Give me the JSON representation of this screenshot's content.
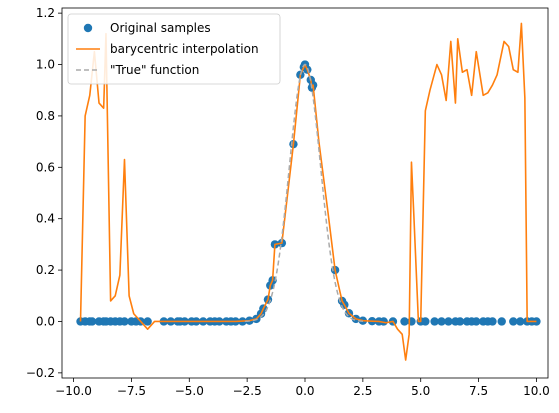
{
  "chart_data": {
    "type": "line",
    "title": "",
    "xlabel": "",
    "ylabel": "",
    "xlim": [
      -10.5,
      10.5
    ],
    "ylim": [
      -0.22,
      1.22
    ],
    "xticks": [
      -10.0,
      -7.5,
      -5.0,
      -2.5,
      0.0,
      2.5,
      5.0,
      7.5,
      10.0
    ],
    "xtick_labels": [
      "−10.0",
      "−7.5",
      "−5.0",
      "−2.5",
      "0.0",
      "2.5",
      "5.0",
      "7.5",
      "10.0"
    ],
    "yticks": [
      -0.2,
      0.0,
      0.2,
      0.4,
      0.6,
      0.8,
      1.0,
      1.2
    ],
    "ytick_labels": [
      "−0.2",
      "0.0",
      "0.2",
      "0.4",
      "0.6",
      "0.8",
      "1.0",
      "1.2"
    ],
    "grid": false,
    "legend_position": "top-left",
    "series": [
      {
        "name": "Original samples",
        "kind": "scatter",
        "color": "#1f77b4",
        "x": [
          -9.7,
          -9.5,
          -9.3,
          -9.2,
          -8.9,
          -8.7,
          -8.6,
          -8.4,
          -8.2,
          -8.0,
          -7.8,
          -7.5,
          -7.3,
          -7.1,
          -6.8,
          -6.1,
          -5.8,
          -5.5,
          -5.4,
          -5.2,
          -4.9,
          -4.7,
          -4.4,
          -4.1,
          -3.9,
          -3.7,
          -3.4,
          -3.2,
          -3.0,
          -2.7,
          -2.4,
          -2.1,
          -1.9,
          -1.8,
          -1.6,
          -1.5,
          -1.4,
          -1.3,
          -1.0,
          -0.5,
          -0.2,
          -0.05,
          0.0,
          0.1,
          0.25,
          0.3,
          0.35,
          1.3,
          1.6,
          1.7,
          1.9,
          2.2,
          2.5,
          2.9,
          3.2,
          3.4,
          3.8,
          4.3,
          4.6,
          5.0,
          5.2,
          5.6,
          5.9,
          6.2,
          6.5,
          6.7,
          7.0,
          7.2,
          7.4,
          7.7,
          7.9,
          8.1,
          8.5,
          9.0,
          9.3,
          9.6,
          9.8,
          10.0
        ],
        "values": [
          0.0,
          0.0,
          0.0,
          0.0,
          0.0,
          0.0,
          0.0,
          0.0,
          0.0,
          0.0,
          0.0,
          0.0,
          0.0,
          0.0,
          0.0,
          0.0,
          0.0,
          0.0,
          0.0,
          0.0,
          0.0,
          0.0,
          0.0,
          0.0,
          0.0,
          0.0,
          0.0,
          0.0,
          0.0,
          0.0,
          0.003,
          0.01,
          0.03,
          0.05,
          0.085,
          0.14,
          0.16,
          0.3,
          0.305,
          0.69,
          0.96,
          0.99,
          1.0,
          0.98,
          0.94,
          0.91,
          0.92,
          0.2,
          0.08,
          0.065,
          0.032,
          0.01,
          0.003,
          0.001,
          0.0,
          0.0,
          0.0,
          0.0,
          0.0,
          0.0,
          0.0,
          0.0,
          0.0,
          0.0,
          0.0,
          0.0,
          0.0,
          0.0,
          0.0,
          0.0,
          0.0,
          0.0,
          0.0,
          0.0,
          0.0,
          0.0,
          0.0,
          0.0
        ]
      },
      {
        "name": "barycentric interpolation",
        "kind": "line",
        "color": "#ff7f0e",
        "x": [
          -9.7,
          -9.5,
          -9.3,
          -9.1,
          -8.9,
          -8.7,
          -8.6,
          -8.4,
          -8.2,
          -8.0,
          -7.8,
          -7.6,
          -7.4,
          -7.1,
          -6.8,
          -6.5,
          -6.0,
          -5.0,
          -4.0,
          -3.0,
          -2.4,
          -2.1,
          -1.9,
          -1.8,
          -1.6,
          -1.5,
          -1.4,
          -1.3,
          -1.0,
          -0.5,
          -0.2,
          -0.05,
          0.0,
          0.1,
          0.25,
          0.3,
          0.35,
          0.6,
          1.0,
          1.3,
          1.6,
          1.7,
          1.9,
          2.2,
          2.5,
          2.9,
          3.2,
          3.5,
          3.8,
          4.0,
          4.2,
          4.35,
          4.5,
          4.6,
          4.7,
          4.9,
          5.0,
          5.2,
          5.4,
          5.7,
          5.9,
          6.1,
          6.3,
          6.5,
          6.6,
          6.8,
          7.0,
          7.2,
          7.4,
          7.7,
          7.9,
          8.1,
          8.3,
          8.6,
          8.8,
          9.0,
          9.2,
          9.35,
          9.5,
          9.6,
          9.75,
          9.9,
          10.0
        ],
        "values": [
          0.0,
          0.8,
          0.88,
          1.05,
          0.85,
          0.83,
          1.12,
          0.08,
          0.1,
          0.18,
          0.63,
          0.1,
          0.03,
          0.0,
          -0.03,
          0.0,
          0.0,
          0.0,
          0.0,
          0.0,
          0.003,
          0.01,
          0.03,
          0.05,
          0.085,
          0.14,
          0.16,
          0.3,
          0.305,
          0.69,
          0.96,
          0.99,
          1.0,
          0.98,
          0.94,
          0.91,
          0.92,
          0.7,
          0.42,
          0.2,
          0.08,
          0.065,
          0.032,
          0.01,
          0.003,
          0.001,
          0.0,
          -0.005,
          0.0,
          -0.03,
          -0.05,
          -0.15,
          -0.05,
          0.62,
          0.42,
          0.0,
          0.0,
          0.82,
          0.9,
          1.0,
          0.96,
          0.86,
          1.09,
          0.85,
          1.1,
          0.97,
          0.98,
          0.88,
          1.05,
          0.88,
          0.89,
          0.92,
          0.96,
          1.09,
          1.07,
          0.98,
          0.97,
          1.16,
          0.87,
          0.0,
          0.0,
          0.0,
          0.0
        ]
      },
      {
        "name": "\"True\" function",
        "kind": "line",
        "color": "#aaaaaa",
        "dash": "dashed",
        "function": "gaussian",
        "peak_x": 0.0,
        "peak_y": 1.0
      }
    ]
  }
}
